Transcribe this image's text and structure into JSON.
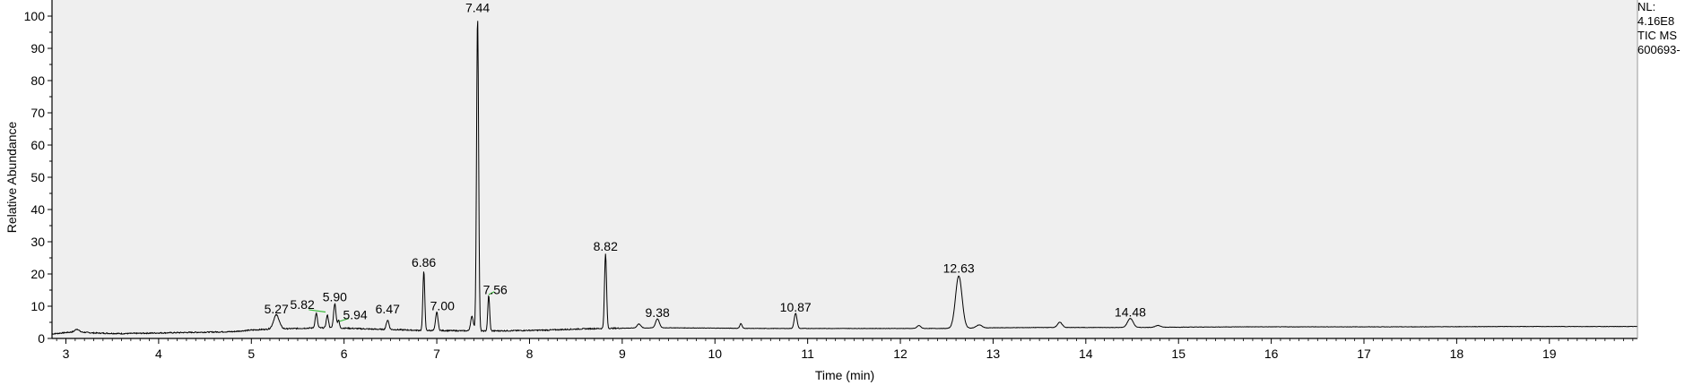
{
  "chart_data": {
    "type": "line",
    "title": "",
    "xlabel": "Time (min)",
    "ylabel": "Relative Abundance",
    "xlim": [
      2.85,
      19.95
    ],
    "ylim": [
      0,
      100
    ],
    "x_ticks": [
      3,
      4,
      5,
      6,
      7,
      8,
      9,
      10,
      11,
      12,
      13,
      14,
      15,
      16,
      17,
      18,
      19
    ],
    "y_ticks": [
      0,
      10,
      20,
      30,
      40,
      50,
      60,
      70,
      80,
      90,
      100
    ],
    "grid": false,
    "baseline": [
      [
        2.85,
        1.4
      ],
      [
        3.1,
        2.1
      ],
      [
        3.3,
        1.7
      ],
      [
        3.6,
        1.5
      ],
      [
        4.0,
        1.7
      ],
      [
        4.4,
        1.9
      ],
      [
        4.8,
        2.1
      ],
      [
        5.0,
        2.6
      ],
      [
        5.2,
        2.9
      ],
      [
        5.5,
        3.1
      ],
      [
        5.7,
        3.3
      ],
      [
        6.0,
        3.2
      ],
      [
        6.3,
        2.9
      ],
      [
        6.6,
        2.7
      ],
      [
        6.8,
        2.5
      ],
      [
        7.2,
        2.4
      ],
      [
        7.5,
        2.3
      ],
      [
        7.8,
        2.4
      ],
      [
        8.2,
        2.6
      ],
      [
        8.6,
        3.0
      ],
      [
        9.0,
        3.2
      ],
      [
        9.5,
        3.3
      ],
      [
        10.0,
        3.2
      ],
      [
        10.5,
        3.1
      ],
      [
        11.0,
        3.1
      ],
      [
        11.5,
        3.1
      ],
      [
        12.0,
        3.1
      ],
      [
        12.5,
        3.1
      ],
      [
        13.0,
        3.3
      ],
      [
        13.5,
        3.4
      ],
      [
        14.0,
        3.4
      ],
      [
        14.5,
        3.4
      ],
      [
        15.0,
        3.5
      ],
      [
        15.7,
        3.6
      ],
      [
        16.5,
        3.6
      ],
      [
        17.5,
        3.6
      ],
      [
        18.5,
        3.7
      ],
      [
        19.5,
        3.7
      ],
      [
        19.95,
        3.7
      ]
    ],
    "peaks": [
      {
        "rt": 3.12,
        "height": 2.9,
        "width": 0.02
      },
      {
        "rt": 5.27,
        "height": 7.3,
        "width": 0.03
      },
      {
        "rt": 5.7,
        "height": 7.8,
        "width": 0.012
      },
      {
        "rt": 5.82,
        "height": 7.2,
        "width": 0.012
      },
      {
        "rt": 5.9,
        "height": 10.8,
        "width": 0.013
      },
      {
        "rt": 5.94,
        "height": 5.6,
        "width": 0.01
      },
      {
        "rt": 6.47,
        "height": 5.7,
        "width": 0.014
      },
      {
        "rt": 6.86,
        "height": 21.1,
        "width": 0.01
      },
      {
        "rt": 7.0,
        "height": 8.2,
        "width": 0.013
      },
      {
        "rt": 7.38,
        "height": 6.8,
        "width": 0.015
      },
      {
        "rt": 7.44,
        "height": 100.0,
        "width": 0.011
      },
      {
        "rt": 7.56,
        "height": 13.4,
        "width": 0.01
      },
      {
        "rt": 8.82,
        "height": 26.2,
        "width": 0.011
      },
      {
        "rt": 9.18,
        "height": 4.5,
        "width": 0.02
      },
      {
        "rt": 9.38,
        "height": 6.1,
        "width": 0.02
      },
      {
        "rt": 10.28,
        "height": 4.6,
        "width": 0.012
      },
      {
        "rt": 10.87,
        "height": 7.8,
        "width": 0.015
      },
      {
        "rt": 12.2,
        "height": 4.0,
        "width": 0.02
      },
      {
        "rt": 12.63,
        "height": 19.4,
        "width": 0.035
      },
      {
        "rt": 12.85,
        "height": 4.2,
        "width": 0.03
      },
      {
        "rt": 13.72,
        "height": 5.0,
        "width": 0.025
      },
      {
        "rt": 14.48,
        "height": 6.2,
        "width": 0.03
      },
      {
        "rt": 14.78,
        "height": 4.0,
        "width": 0.03
      }
    ],
    "peak_labels": [
      {
        "text": "5.27",
        "rt": 5.27,
        "y": 7.8
      },
      {
        "text": "5.82",
        "rt": 5.55,
        "y": 9.2
      },
      {
        "text": "5.90",
        "rt": 5.9,
        "y": 11.5
      },
      {
        "text": "5.94",
        "rt": 6.12,
        "y": 6.0
      },
      {
        "text": "6.47",
        "rt": 6.47,
        "y": 7.8
      },
      {
        "text": "6.86",
        "rt": 6.86,
        "y": 22.2
      },
      {
        "text": "7.00",
        "rt": 7.06,
        "y": 8.8
      },
      {
        "text": "7.44",
        "rt": 7.44,
        "y": 101.2
      },
      {
        "text": "7.56",
        "rt": 7.63,
        "y": 13.8
      },
      {
        "text": "8.82",
        "rt": 8.82,
        "y": 27.2
      },
      {
        "text": "9.38",
        "rt": 9.38,
        "y": 6.6
      },
      {
        "text": "10.87",
        "rt": 10.87,
        "y": 8.4
      },
      {
        "text": "12.63",
        "rt": 12.63,
        "y": 20.4
      },
      {
        "text": "14.48",
        "rt": 14.48,
        "y": 6.8
      }
    ],
    "label_leaders": [
      {
        "x1": 5.62,
        "y1": 8.9,
        "x2": 5.8,
        "y2": 8.2
      },
      {
        "x1": 5.95,
        "y1": 5.3,
        "x2": 6.05,
        "y2": 6.2
      },
      {
        "x1": 7.56,
        "y1": 13.6,
        "x2": 7.62,
        "y2": 14.5
      }
    ],
    "colors": {
      "plot_background": "#efefef",
      "trace": "#000000",
      "leader": "#3dbb3d",
      "axis": "#000000"
    }
  },
  "info": {
    "nl_label": "NL:",
    "nl_value": "4.16E8",
    "scan_filter": "TIC  MS",
    "file_name": "600693-"
  }
}
